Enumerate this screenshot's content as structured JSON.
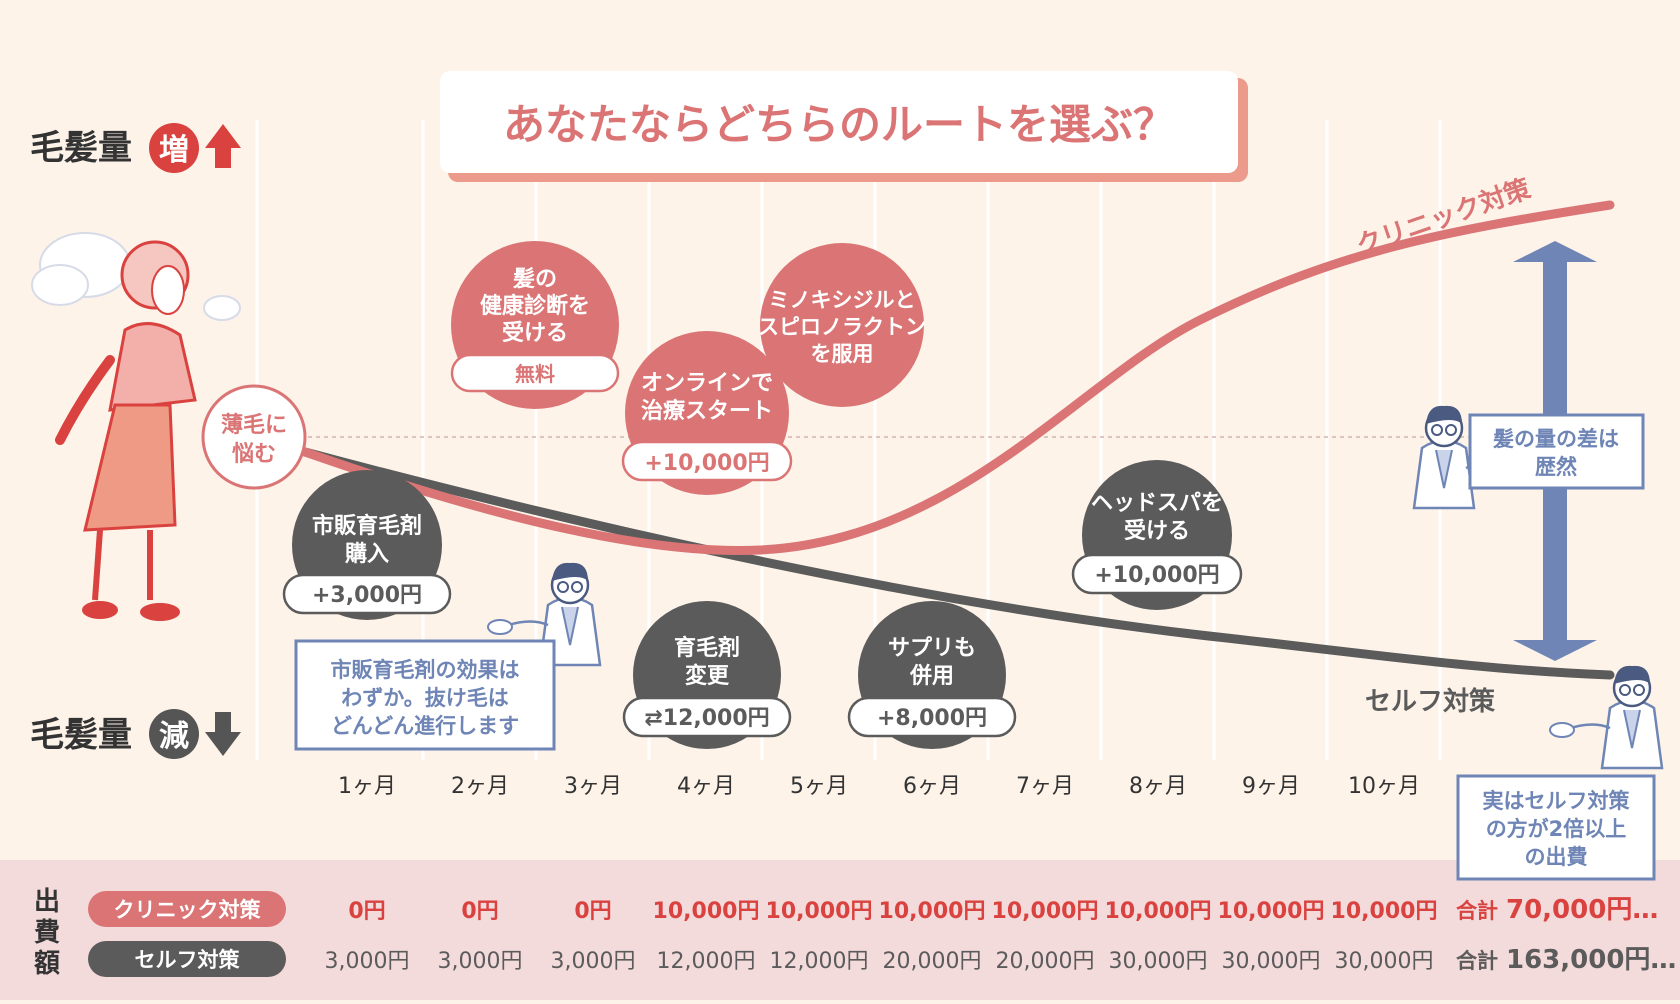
{
  "title": "あなたならどちらのルートを選ぶ？",
  "axis": {
    "up_label": "毛髪量",
    "up_badge": "増",
    "down_label": "毛髪量",
    "down_badge": "減",
    "months": [
      "1ヶ月",
      "2ヶ月",
      "3ヶ月",
      "4ヶ月",
      "5ヶ月",
      "6ヶ月",
      "7ヶ月",
      "8ヶ月",
      "9ヶ月",
      "10ヶ月"
    ]
  },
  "start": {
    "lines": [
      "薄毛に",
      "悩む"
    ]
  },
  "lines": {
    "clinic": "クリニック対策",
    "self": "セルフ対策"
  },
  "clinic_bubbles": [
    {
      "lines": [
        "髪の",
        "健康診断を",
        "受ける"
      ],
      "price": "無料"
    },
    {
      "lines": [
        "オンラインで",
        "治療スタート"
      ],
      "price": "+10,000円"
    },
    {
      "lines": [
        "ミノキシジルと",
        "スピロノラクトン",
        "を服用"
      ],
      "price": ""
    }
  ],
  "self_bubbles": [
    {
      "lines": [
        "市販育毛剤",
        "購入"
      ],
      "price": "+3,000円"
    },
    {
      "lines": [
        "育毛剤",
        "変更"
      ],
      "price": "⇄12,000円"
    },
    {
      "lines": [
        "サプリも",
        "併用"
      ],
      "price": "+8,000円"
    },
    {
      "lines": [
        "ヘッドスパを",
        "受ける"
      ],
      "price": "+10,000円"
    }
  ],
  "callouts": {
    "self_note": [
      "市販育毛剤の効果は",
      "わずか。抜け毛は",
      "どんどん進行します"
    ],
    "diff_note": [
      "髪の量の差は",
      "歴然"
    ],
    "cost_note": [
      "実はセルフ対策",
      "の方が2倍以上",
      "の出費"
    ]
  },
  "costs": {
    "header": [
      "出",
      "費",
      "額"
    ],
    "clinic_label": "クリニック対策",
    "self_label": "セルフ対策",
    "clinic_values": [
      "0円",
      "0円",
      "0円",
      "10,000円",
      "10,000円",
      "10,000円",
      "10,000円",
      "10,000円",
      "10,000円",
      "10,000円"
    ],
    "self_values": [
      "3,000円",
      "3,000円",
      "3,000円",
      "12,000円",
      "12,000円",
      "20,000円",
      "20,000円",
      "30,000円",
      "30,000円",
      "30,000円"
    ],
    "clinic_total_prefix": "合計",
    "clinic_total": "70,000円…",
    "self_total_prefix": "合計",
    "self_total": "163,000円…"
  },
  "colors": {
    "background": "#fdf3e9",
    "clinic": "#db7575",
    "clinic_strong": "#d9423f",
    "self": "#5b5b5b",
    "blue": "#6e85b5",
    "table_bg": "#f3dadb"
  },
  "icons": [
    "worried-woman-icon",
    "doctor-icon",
    "up-arrow-icon",
    "down-arrow-icon",
    "double-arrow-icon"
  ]
}
